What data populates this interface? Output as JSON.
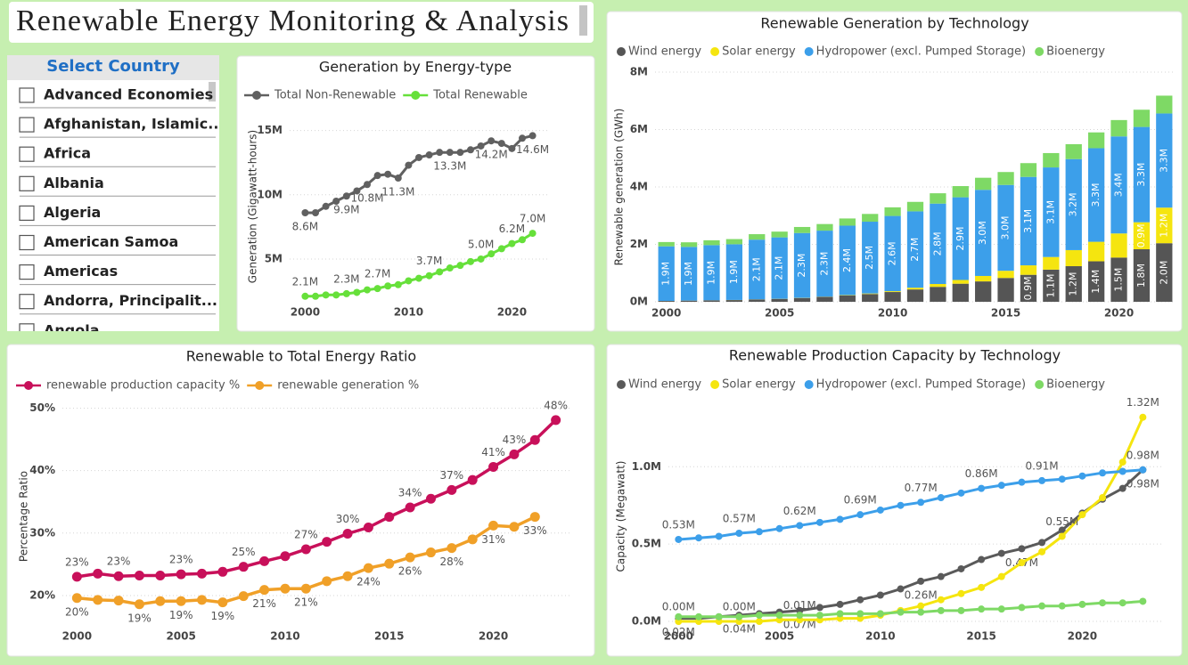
{
  "title": "Renewable Energy Monitoring & Analysis",
  "slicer": {
    "title": "Select Country",
    "items": [
      "Advanced Economies",
      "Afghanistan, Islamic...",
      "Africa",
      "Albania",
      "Algeria",
      "American Samoa",
      "Americas",
      "Andorra, Principalit...",
      "Angola"
    ]
  },
  "chart_data": [
    {
      "type": "line",
      "title": "Generation by Energy-type",
      "y_label": "Generation (Gigawatt-hours)",
      "legend": "top-left",
      "grid": true,
      "x": [
        2000,
        2001,
        2002,
        2003,
        2004,
        2005,
        2006,
        2007,
        2008,
        2009,
        2010,
        2011,
        2012,
        2013,
        2014,
        2015,
        2016,
        2017,
        2018,
        2019,
        2020,
        2021,
        2022
      ],
      "xlim": [
        1998.5,
        2023.5
      ],
      "xticks": [
        2000,
        2010,
        2020
      ],
      "ylim": [
        1600000,
        16500000
      ],
      "yticks": [
        {
          "value": 5000000,
          "label": "5M"
        },
        {
          "value": 10000000,
          "label": "10M"
        },
        {
          "value": 15000000,
          "label": "15M"
        }
      ],
      "series": [
        {
          "name": "Total Non-Renewable",
          "color": "#606060",
          "values": [
            8600000,
            8600000,
            9100000,
            9500000,
            9900000,
            10300000,
            10800000,
            11500000,
            11600000,
            11300000,
            12300000,
            12900000,
            13100000,
            13300000,
            13300000,
            13300000,
            13500000,
            13800000,
            14200000,
            14000000,
            13600000,
            14400000,
            14600000
          ],
          "value_labels": [
            "8.6M",
            null,
            null,
            null,
            "9.9M",
            null,
            "10.8M",
            null,
            null,
            "11.3M",
            null,
            null,
            null,
            null,
            "13.3M",
            null,
            null,
            null,
            "14.2M",
            null,
            null,
            null,
            "14.6M"
          ]
        },
        {
          "name": "Total Renewable",
          "color": "#66e03a",
          "values": [
            2100000,
            2100000,
            2200000,
            2200000,
            2300000,
            2400000,
            2600000,
            2700000,
            2900000,
            3000000,
            3300000,
            3500000,
            3700000,
            4000000,
            4300000,
            4500000,
            4800000,
            5000000,
            5400000,
            5800000,
            6200000,
            6500000,
            7000000
          ],
          "value_labels": [
            "2.1M",
            null,
            null,
            null,
            "2.3M",
            null,
            null,
            "2.7M",
            null,
            null,
            null,
            null,
            "3.7M",
            null,
            null,
            null,
            null,
            "5.0M",
            null,
            null,
            "6.2M",
            null,
            "7.0M"
          ]
        }
      ]
    },
    {
      "type": "bar",
      "stacked": true,
      "title": "Renewable Generation by Technology",
      "y_label": "Renewable generation (GWh)",
      "legend": "top-left",
      "grid": true,
      "x": [
        2000,
        2001,
        2002,
        2003,
        2004,
        2005,
        2006,
        2007,
        2008,
        2009,
        2010,
        2011,
        2012,
        2013,
        2014,
        2015,
        2016,
        2017,
        2018,
        2019,
        2020,
        2021,
        2022
      ],
      "xlim": [
        1999.5,
        2022.5
      ],
      "xticks": [
        2000,
        2005,
        2010,
        2015,
        2020
      ],
      "ylim": [
        0,
        8000000
      ],
      "yticks": [
        {
          "value": 0,
          "label": "0M"
        },
        {
          "value": 2000000,
          "label": "2M"
        },
        {
          "value": 4000000,
          "label": "4M"
        },
        {
          "value": 6000000,
          "label": "6M"
        },
        {
          "value": 8000000,
          "label": "8M"
        }
      ],
      "series": [
        {
          "name": "Wind energy",
          "color": "#555555",
          "values": [
            30000,
            40000,
            50000,
            60000,
            80000,
            100000,
            130000,
            170000,
            220000,
            270000,
            340000,
            430000,
            520000,
            630000,
            710000,
            830000,
            940000,
            1120000,
            1240000,
            1410000,
            1540000,
            1830000,
            2040000
          ],
          "value_labels": [
            null,
            null,
            null,
            null,
            null,
            null,
            null,
            null,
            null,
            null,
            null,
            null,
            null,
            null,
            null,
            null,
            "0.9M",
            "1.1M",
            "1.2M",
            "1.4M",
            "1.5M",
            "1.8M",
            "2.0M"
          ]
        },
        {
          "name": "Solar energy",
          "color": "#f5e50f",
          "values": [
            1000,
            2000,
            3000,
            4000,
            5000,
            4000,
            6000,
            8000,
            12000,
            20000,
            30000,
            60000,
            100000,
            130000,
            190000,
            250000,
            330000,
            440000,
            560000,
            680000,
            840000,
            940000,
            1240000
          ],
          "value_labels": [
            null,
            null,
            null,
            null,
            null,
            null,
            null,
            null,
            null,
            null,
            null,
            null,
            null,
            null,
            null,
            null,
            null,
            null,
            null,
            null,
            null,
            "0.9M",
            "1.2M"
          ]
        },
        {
          "name": "Hydropower (excl. Pumped Storage)",
          "color": "#3c9fea",
          "values": [
            1900000,
            1870000,
            1920000,
            1940000,
            2080000,
            2140000,
            2260000,
            2300000,
            2420000,
            2500000,
            2620000,
            2660000,
            2800000,
            2880000,
            3000000,
            2990000,
            3080000,
            3120000,
            3170000,
            3260000,
            3380000,
            3320000,
            3280000
          ],
          "value_labels": [
            "1.9M",
            "1.9M",
            "1.9M",
            "1.9M",
            "2.1M",
            "2.1M",
            "2.3M",
            "2.3M",
            "2.4M",
            "2.5M",
            "2.6M",
            "2.7M",
            "2.8M",
            "2.9M",
            "3.0M",
            "3.0M",
            "3.1M",
            "3.1M",
            "3.2M",
            "3.3M",
            "3.4M",
            "3.3M",
            "3.3M"
          ]
        },
        {
          "name": "Bioenergy",
          "color": "#7ed965",
          "values": [
            150000,
            160000,
            170000,
            180000,
            190000,
            200000,
            210000,
            230000,
            250000,
            270000,
            300000,
            330000,
            360000,
            390000,
            420000,
            450000,
            480000,
            500000,
            520000,
            550000,
            570000,
            600000,
            620000
          ]
        }
      ]
    },
    {
      "type": "line",
      "title": "Renewable to Total Energy Ratio",
      "y_label": "Percentage Ratio",
      "legend": "top-left",
      "grid": true,
      "x": [
        2000,
        2001,
        2002,
        2003,
        2004,
        2005,
        2006,
        2007,
        2008,
        2009,
        2010,
        2011,
        2012,
        2013,
        2014,
        2015,
        2016,
        2017,
        2018,
        2019,
        2020,
        2021,
        2022,
        2023
      ],
      "xlim": [
        1999.3,
        2023.7
      ],
      "xticks": [
        2000,
        2005,
        2010,
        2015,
        2020
      ],
      "ylim": [
        17,
        50.5
      ],
      "yticks": [
        {
          "value": 20,
          "label": "20%"
        },
        {
          "value": 30,
          "label": "30%"
        },
        {
          "value": 40,
          "label": "40%"
        },
        {
          "value": 50,
          "label": "50%"
        }
      ],
      "series": [
        {
          "name": "renewable production capacity %",
          "color": "#c8105a",
          "values": [
            23.0,
            23.5,
            23.1,
            23.2,
            23.2,
            23.4,
            23.5,
            23.8,
            24.6,
            25.5,
            26.3,
            27.4,
            28.6,
            29.9,
            30.9,
            32.6,
            34.1,
            35.5,
            36.9,
            38.5,
            40.6,
            42.6,
            44.9,
            48.1
          ],
          "value_labels": [
            "23%",
            null,
            "23%",
            null,
            null,
            "23%",
            null,
            null,
            "25%",
            null,
            null,
            "27%",
            null,
            "30%",
            null,
            null,
            "34%",
            null,
            "37%",
            null,
            "41%",
            "43%",
            null,
            "48%"
          ]
        },
        {
          "name": "renewable generation %",
          "color": "#f0a028",
          "values": [
            19.6,
            19.3,
            19.2,
            18.6,
            19.1,
            19.1,
            19.3,
            18.9,
            19.9,
            20.9,
            21.1,
            21.1,
            22.3,
            23.1,
            24.4,
            25.1,
            26.1,
            26.9,
            27.6,
            29.0,
            31.2,
            31.0,
            32.6,
            null
          ],
          "value_labels": [
            "20%",
            null,
            null,
            "19%",
            null,
            "19%",
            null,
            "19%",
            null,
            "21%",
            null,
            "21%",
            null,
            null,
            "24%",
            null,
            "26%",
            null,
            "28%",
            null,
            "31%",
            null,
            "33%",
            null
          ]
        }
      ]
    },
    {
      "type": "line",
      "title": "Renewable Production Capacity by Technology",
      "y_label": "Capacity (Megawatt)",
      "legend": "top-left",
      "grid": true,
      "x": [
        2000,
        2001,
        2002,
        2003,
        2004,
        2005,
        2006,
        2007,
        2008,
        2009,
        2010,
        2011,
        2012,
        2013,
        2014,
        2015,
        2016,
        2017,
        2018,
        2019,
        2020,
        2021,
        2022,
        2023
      ],
      "xlim": [
        1999.5,
        2024
      ],
      "xticks": [
        2000,
        2005,
        2010,
        2015,
        2020
      ],
      "ylim": [
        -40000,
        1370000
      ],
      "yticks": [
        {
          "value": 0,
          "label": "0.0M"
        },
        {
          "value": 500000,
          "label": "0.5M"
        },
        {
          "value": 1000000,
          "label": "1.0M"
        }
      ],
      "series": [
        {
          "name": "Wind energy",
          "color": "#5a5a5a",
          "values": [
            20000,
            20000,
            30000,
            40000,
            50000,
            60000,
            70000,
            90000,
            110000,
            140000,
            170000,
            210000,
            260000,
            290000,
            340000,
            400000,
            440000,
            470000,
            510000,
            590000,
            700000,
            790000,
            860000,
            980000
          ],
          "value_labels": [
            "0.02M",
            null,
            null,
            "0.04M",
            null,
            null,
            "0.07M",
            null,
            null,
            null,
            null,
            null,
            "0.26M",
            null,
            null,
            null,
            null,
            "0.47M",
            null,
            null,
            null,
            null,
            null,
            "0.98M"
          ]
        },
        {
          "name": "Solar energy",
          "color": "#f5e50f",
          "values": [
            0,
            0,
            0,
            0,
            0,
            10000,
            10000,
            10000,
            20000,
            20000,
            40000,
            70000,
            100000,
            140000,
            180000,
            220000,
            290000,
            380000,
            450000,
            550000,
            690000,
            800000,
            1030000,
            1320000
          ],
          "value_labels": [
            "0.00M",
            null,
            null,
            "0.00M",
            null,
            null,
            "0.01M",
            null,
            null,
            null,
            null,
            null,
            null,
            null,
            null,
            null,
            null,
            null,
            null,
            "0.55M",
            null,
            null,
            null,
            "1.32M"
          ]
        },
        {
          "name": "Hydropower (excl. Pumped Storage)",
          "color": "#3c9fea",
          "values": [
            530000,
            540000,
            550000,
            570000,
            580000,
            600000,
            620000,
            640000,
            660000,
            690000,
            720000,
            750000,
            770000,
            800000,
            830000,
            860000,
            880000,
            900000,
            910000,
            920000,
            940000,
            960000,
            970000,
            980000
          ],
          "value_labels": [
            "0.53M",
            null,
            null,
            "0.57M",
            null,
            null,
            "0.62M",
            null,
            null,
            "0.69M",
            null,
            null,
            "0.77M",
            null,
            null,
            "0.86M",
            null,
            null,
            "0.91M",
            null,
            null,
            null,
            null,
            "0.98M"
          ]
        },
        {
          "name": "Bioenergy",
          "color": "#7ed965",
          "values": [
            30000,
            30000,
            30000,
            30000,
            40000,
            40000,
            40000,
            40000,
            50000,
            50000,
            50000,
            60000,
            60000,
            70000,
            70000,
            80000,
            80000,
            90000,
            100000,
            100000,
            110000,
            120000,
            120000,
            130000
          ]
        }
      ]
    }
  ]
}
